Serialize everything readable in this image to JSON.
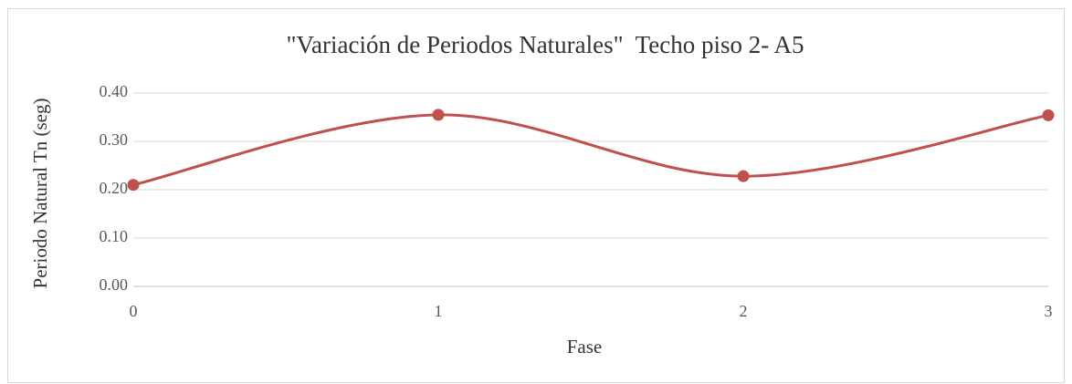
{
  "chart_data": {
    "type": "line",
    "title": "\"Variación de Periodos Naturales\"  Techo piso 2- A5",
    "xlabel": "Fase",
    "ylabel": "Periodo Natural Tn (seg)",
    "x": [
      0,
      1,
      2,
      3
    ],
    "series": [
      {
        "name": "Tn",
        "color": "#c0504d",
        "values": [
          0.21,
          0.355,
          0.228,
          0.354
        ]
      }
    ],
    "xlim": [
      0,
      3
    ],
    "xticks": [
      0,
      1,
      2,
      3
    ],
    "ylim": [
      0,
      0.4
    ],
    "yticks": [
      {
        "value": 0,
        "label": "0.00"
      },
      {
        "value": 0.1,
        "label": "0.10"
      },
      {
        "value": 0.2,
        "label": "0.20"
      },
      {
        "value": 0.3,
        "label": "0.30"
      },
      {
        "value": 0.4,
        "label": "0.40"
      }
    ],
    "grid": true,
    "smooth": true
  }
}
